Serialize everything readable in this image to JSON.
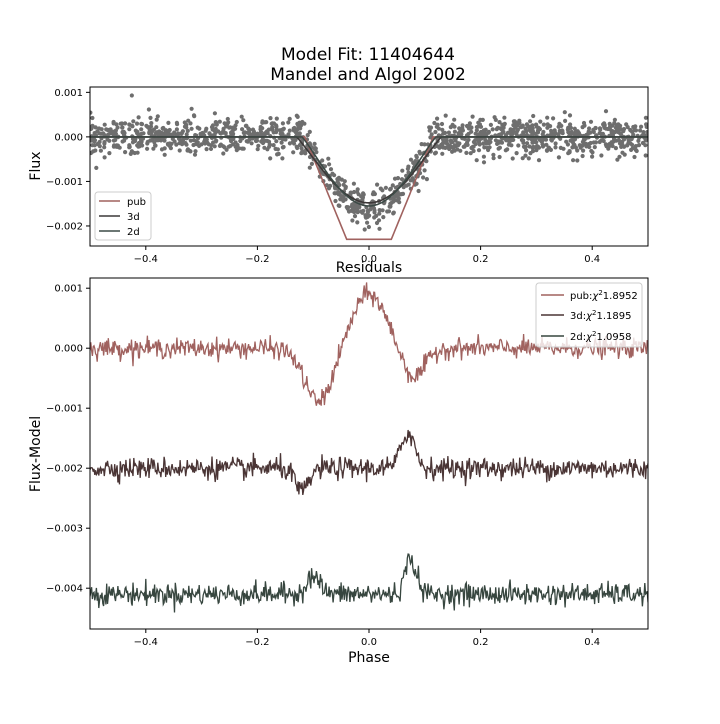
{
  "figure": {
    "title_line1": "Model Fit: 11404644",
    "title_line2": "Mandel and Algol 2002"
  },
  "chart_data": [
    {
      "type": "scatter",
      "panel": "top",
      "title": "",
      "xlabel": "",
      "ylabel": "Flux",
      "xlim": [
        -0.5,
        0.5
      ],
      "ylim": [
        -0.00245,
        0.00112
      ],
      "x_ticks": [
        -0.4,
        -0.2,
        0.0,
        0.2,
        0.4
      ],
      "x_tick_labels": [
        "−0.4",
        "−0.2",
        "0.0",
        "0.2",
        "0.4"
      ],
      "y_ticks": [
        0.001,
        0.0,
        -0.001,
        -0.002
      ],
      "y_tick_labels": [
        "0.001",
        "0.000",
        "−0.001",
        "−0.002"
      ],
      "grid": false,
      "legend_position": "lower-left",
      "data_series": {
        "name": "",
        "color": "#6e6e6e",
        "points_approx": 1400,
        "out_of_transit_flux": 0.0,
        "out_of_transit_scatter": 0.00025,
        "in_transit_min_flux": -0.0016,
        "in_transit_center_phase": 0.0,
        "outlier": {
          "x": -0.425,
          "y": 0.00093
        }
      },
      "series": [
        {
          "name": "pub",
          "color": "#a0625f",
          "kind": "trapezoid",
          "depth": -0.0023,
          "ingress_start": -0.115,
          "flat_start": -0.04,
          "flat_end": 0.04,
          "egress_end": 0.115
        },
        {
          "name": "3d",
          "color": "#3c3838",
          "kind": "smooth",
          "depth": -0.00148,
          "half_width": 0.13
        },
        {
          "name": "2d",
          "color": "#3c4a46",
          "kind": "smooth",
          "depth": -0.00155,
          "half_width": 0.12
        }
      ]
    },
    {
      "type": "line",
      "panel": "bottom",
      "title": "Residuals",
      "xlabel": "Phase",
      "ylabel": "Flux-Model",
      "xlim": [
        -0.5,
        0.5
      ],
      "ylim": [
        -0.00468,
        0.00117
      ],
      "x_ticks": [
        -0.4,
        -0.2,
        0.0,
        0.2,
        0.4
      ],
      "x_tick_labels": [
        "−0.4",
        "−0.2",
        "0.0",
        "0.2",
        "0.4"
      ],
      "y_ticks": [
        0.001,
        0.0,
        -0.001,
        -0.002,
        -0.003,
        -0.004
      ],
      "y_tick_labels": [
        "0.001",
        "0.000",
        "−0.001",
        "−0.002",
        "−0.003",
        "−0.004"
      ],
      "grid": false,
      "legend_position": "upper-right",
      "series": [
        {
          "name": "pub:",
          "chi2_label": "χ",
          "chi2_sup": "2",
          "chi2_value": "1.8952",
          "color": "#a0625f",
          "offset": 0.0,
          "noise": 8e-05,
          "features": [
            {
              "x": -0.09,
              "amp": -0.0009,
              "w": 0.025
            },
            {
              "x": 0.0,
              "amp": 0.0009,
              "w": 0.03
            },
            {
              "x": 0.08,
              "amp": -0.0005,
              "w": 0.02
            }
          ]
        },
        {
          "name": "3d:",
          "chi2_label": "χ",
          "chi2_sup": "2",
          "chi2_value": "1.1895",
          "color": "#4a3535",
          "offset": -0.002,
          "noise": 9e-05,
          "features": [
            {
              "x": -0.12,
              "amp": -0.0004,
              "w": 0.012
            },
            {
              "x": 0.07,
              "amp": 0.0006,
              "w": 0.012
            }
          ]
        },
        {
          "name": "2d:",
          "chi2_label": "χ",
          "chi2_sup": "2",
          "chi2_value": "1.0958",
          "color": "#37463f",
          "offset": -0.0041,
          "noise": 9e-05,
          "features": [
            {
              "x": -0.1,
              "amp": 0.0003,
              "w": 0.012
            },
            {
              "x": 0.075,
              "amp": 0.0006,
              "w": 0.01
            }
          ]
        }
      ]
    }
  ]
}
